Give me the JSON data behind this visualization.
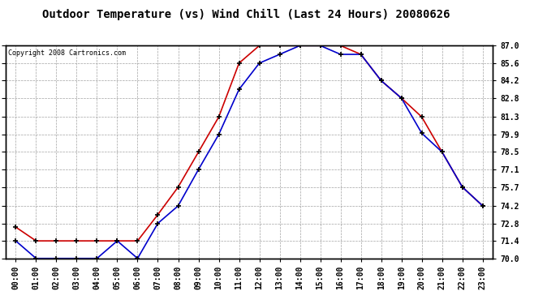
{
  "title": "Outdoor Temperature (vs) Wind Chill (Last 24 Hours) 20080626",
  "copyright": "Copyright 2008 Cartronics.com",
  "hours": [
    "00:00",
    "01:00",
    "02:00",
    "03:00",
    "04:00",
    "05:00",
    "06:00",
    "07:00",
    "08:00",
    "09:00",
    "10:00",
    "11:00",
    "12:00",
    "13:00",
    "14:00",
    "15:00",
    "16:00",
    "17:00",
    "18:00",
    "19:00",
    "20:00",
    "21:00",
    "22:00",
    "23:00"
  ],
  "outdoor_temp": [
    72.5,
    71.4,
    71.4,
    71.4,
    71.4,
    71.4,
    71.4,
    73.5,
    75.7,
    78.5,
    81.3,
    85.6,
    87.0,
    87.0,
    87.0,
    87.0,
    87.0,
    86.3,
    84.2,
    82.8,
    81.3,
    78.5,
    75.7,
    74.2
  ],
  "wind_chill": [
    71.4,
    70.0,
    70.0,
    70.0,
    70.0,
    71.4,
    70.0,
    72.8,
    74.2,
    77.1,
    79.9,
    83.5,
    85.6,
    86.3,
    87.0,
    87.0,
    86.3,
    86.3,
    84.2,
    82.8,
    80.0,
    78.5,
    75.7,
    74.2
  ],
  "temp_color": "#cc0000",
  "wind_chill_color": "#0000cc",
  "bg_color": "#ffffff",
  "plot_bg_color": "#ffffff",
  "grid_color": "#999999",
  "ymin": 70.0,
  "ymax": 87.0,
  "yticks": [
    70.0,
    71.4,
    72.8,
    74.2,
    75.7,
    77.1,
    78.5,
    79.9,
    81.3,
    82.8,
    84.2,
    85.6,
    87.0
  ],
  "title_fontsize": 10,
  "copyright_fontsize": 6,
  "tick_fontsize": 7
}
